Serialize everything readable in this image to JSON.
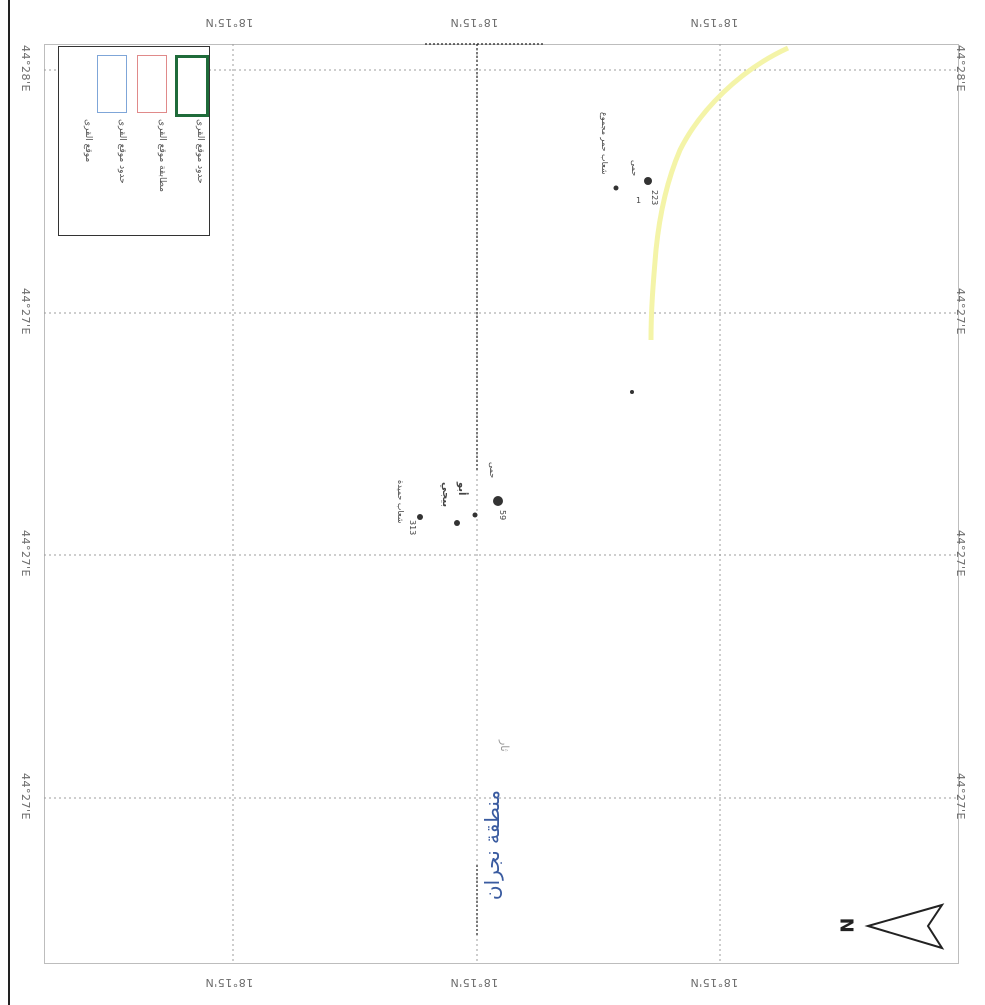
{
  "map": {
    "top_lon_labels": [
      "18°15'N",
      "18°15'N",
      "18°15'N"
    ],
    "bottom_lon_labels": [
      "18°15'N",
      "18°15'N",
      "18°15'N"
    ],
    "left_lat_labels": [
      "44°28'E",
      "44°27'E",
      "44°27'E",
      "44°27'E"
    ],
    "right_lat_labels": [
      "44°28'E",
      "44°27'E",
      "44°27'E",
      "44°27'E"
    ],
    "region_label": "منطقة نجران",
    "region_sub_label": "ثار"
  },
  "legend": {
    "items": [
      {
        "label": "موقع القرى",
        "color": "#7a3a3a"
      },
      {
        "label": "حدود موقع القرى",
        "color": "#7fa6d8"
      },
      {
        "label": "مطابقة موقع القرى",
        "color": "#e08a8a"
      },
      {
        "label": "حدود موقع القرى",
        "color": "#1f6b3a"
      }
    ]
  },
  "places": [
    {
      "name": "شعاب حميدة",
      "code": "313"
    },
    {
      "name": "بيجي",
      "code": ""
    },
    {
      "name": "أبو",
      "code": "59"
    },
    {
      "name": "حمى",
      "code": ""
    },
    {
      "name": "شعاب حمر مجموع",
      "code": "223"
    },
    {
      "name": "حمى",
      "code": "1"
    }
  ],
  "north_arrow": {
    "label": "N"
  },
  "colors": {
    "grid": "#9e9e9e",
    "road": "#f2f29a",
    "frame": "#bdbdbd"
  }
}
